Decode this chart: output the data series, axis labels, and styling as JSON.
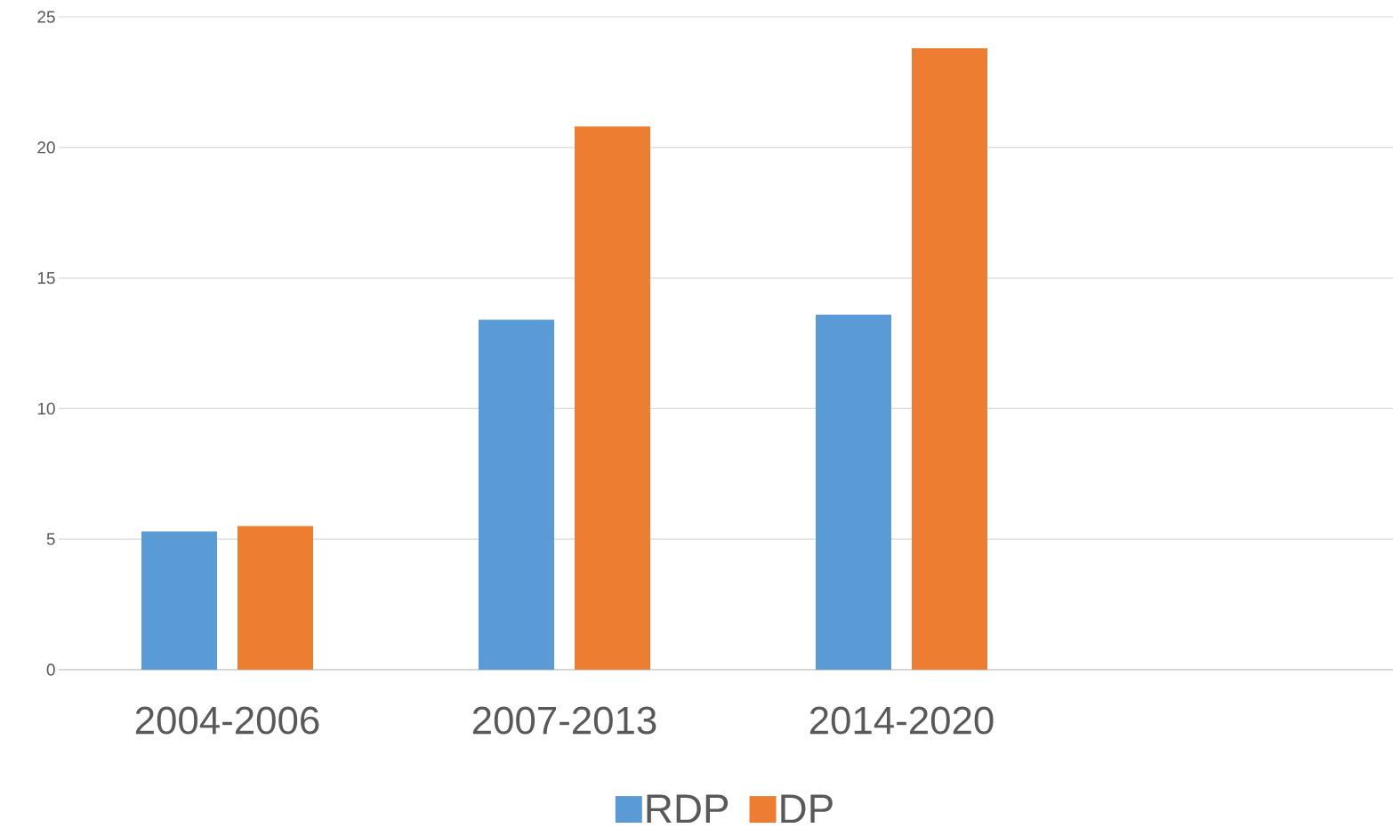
{
  "chart_data": {
    "type": "bar",
    "categories": [
      "2004-2006",
      "2007-2013",
      "2014-2020",
      null
    ],
    "series": [
      {
        "name": "RDP",
        "color": "#5b9bd5",
        "values": [
          5.3,
          13.4,
          13.6,
          null
        ]
      },
      {
        "name": "DP",
        "color": "#ed7d31",
        "values": [
          5.5,
          20.8,
          23.8,
          null
        ]
      }
    ],
    "ylim": [
      0,
      25
    ],
    "yticks": [
      0,
      5,
      10,
      15,
      20,
      25
    ],
    "grid": "y",
    "legend": "bottom"
  }
}
